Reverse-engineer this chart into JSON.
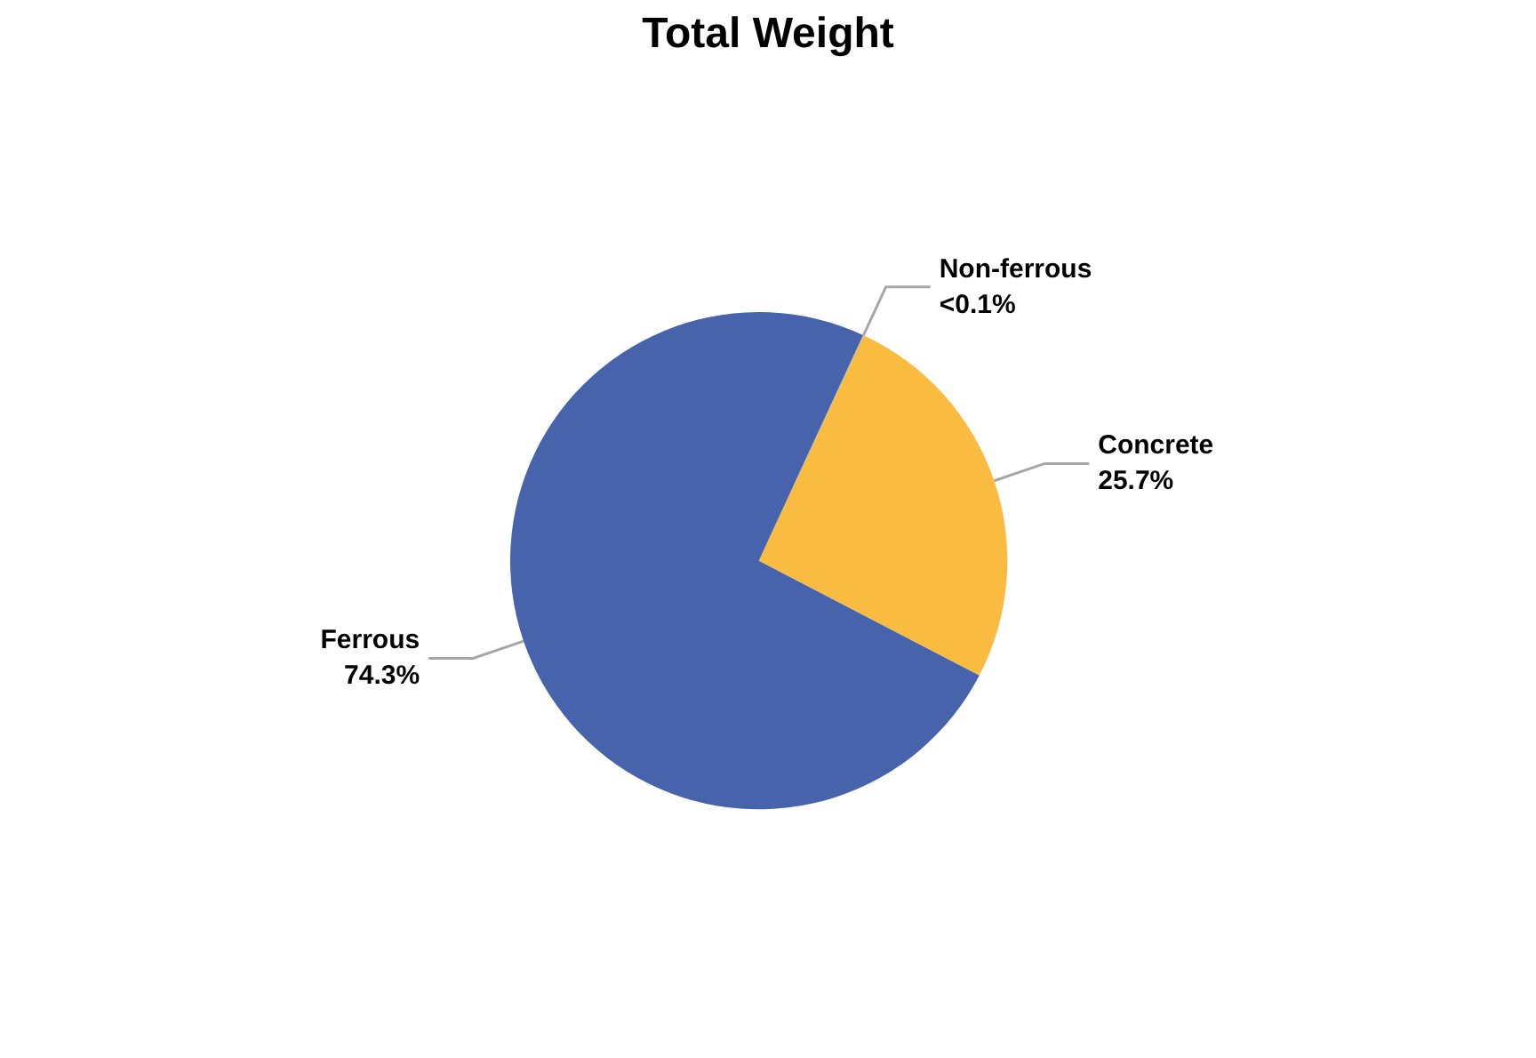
{
  "chart_data": {
    "type": "pie",
    "title": "Total Weight",
    "categories": [
      "Concrete",
      "Ferrous",
      "Non-ferrous"
    ],
    "values": [
      25.7,
      74.3,
      0.05
    ],
    "value_labels": [
      "25.7%",
      "74.3%",
      "<0.1%"
    ],
    "colors": [
      "#f9bc41",
      "#4763ac",
      "#a5a5a5"
    ],
    "legend": false
  }
}
